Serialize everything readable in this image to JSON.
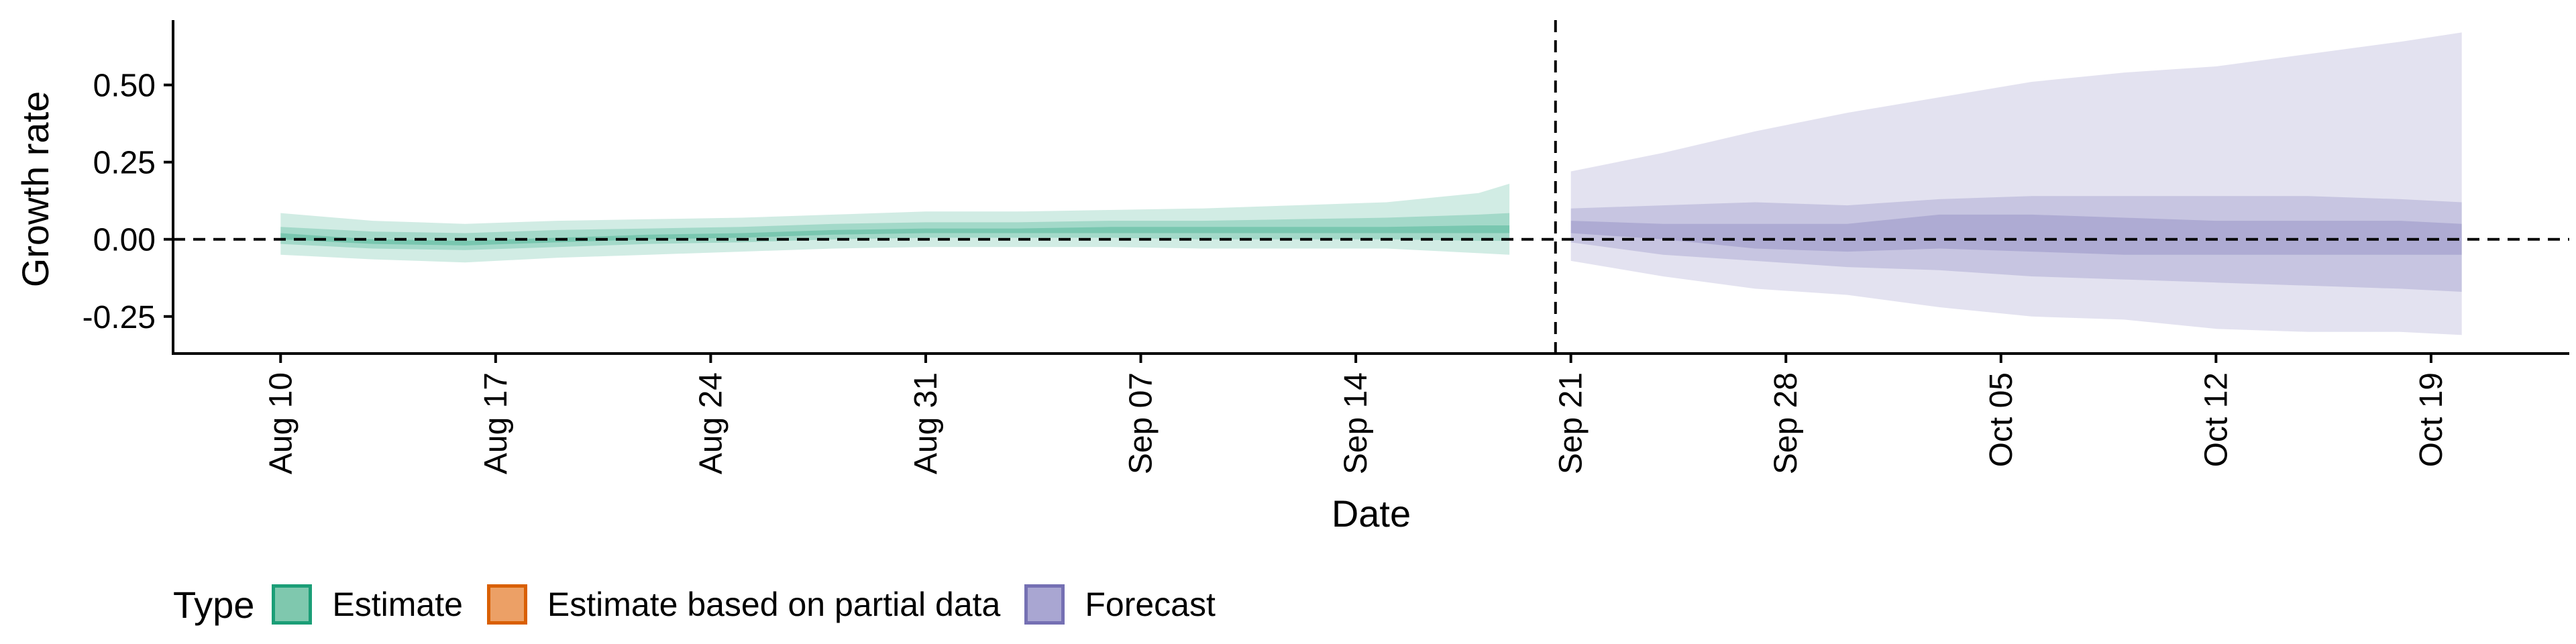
{
  "chart_data": {
    "type": "area",
    "title": "",
    "xlabel": "Date",
    "ylabel": "Growth rate",
    "x_ticks": [
      "2020-08-10",
      "2020-08-17",
      "2020-08-24",
      "2020-08-31",
      "2020-09-07",
      "2020-09-14",
      "2020-09-21",
      "2020-09-28",
      "2020-10-05",
      "2020-10-12",
      "2020-10-19"
    ],
    "x_tick_labels": [
      "Aug 10",
      "Aug 17",
      "Aug 24",
      "Aug 31",
      "Sep 07",
      "Sep 14",
      "Sep 21",
      "Sep 28",
      "Oct 05",
      "Oct 12",
      "Oct 19"
    ],
    "xlim": [
      "2020-08-06T12:00",
      "2020-10-23T12:00"
    ],
    "y_ticks": [
      -0.25,
      0,
      0.25,
      0.5
    ],
    "y_tick_labels": [
      "-0.25",
      "0.00",
      "0.25",
      "0.50"
    ],
    "ylim": [
      -0.37,
      0.71
    ],
    "grid": false,
    "reference_lines": {
      "horizontal_y": 0,
      "vertical_x": "2020-09-20T12:00"
    },
    "legend": {
      "title": "Type",
      "position": "bottom-left",
      "items": [
        {
          "label": "Estimate",
          "fill": "#7fc8ae",
          "stroke": "#1b9e77"
        },
        {
          "label": "Estimate based on partial data",
          "fill": "#eca066",
          "stroke": "#d95f02"
        },
        {
          "label": "Forecast",
          "fill": "#a9a6d2",
          "stroke": "#7570b3"
        }
      ]
    },
    "series": [
      {
        "name": "Estimate",
        "color": "#1b9e77",
        "x": [
          "2020-08-10",
          "2020-08-13",
          "2020-08-16",
          "2020-08-19",
          "2020-08-22",
          "2020-08-25",
          "2020-08-28",
          "2020-08-31",
          "2020-09-03",
          "2020-09-06",
          "2020-09-09",
          "2020-09-12",
          "2020-09-15",
          "2020-09-18",
          "2020-09-19"
        ],
        "lower90": [
          -0.05,
          -0.065,
          -0.075,
          -0.06,
          -0.05,
          -0.04,
          -0.03,
          -0.025,
          -0.025,
          -0.025,
          -0.03,
          -0.03,
          -0.03,
          -0.045,
          -0.05
        ],
        "lower50": [
          -0.015,
          -0.03,
          -0.035,
          -0.025,
          -0.015,
          -0.01,
          0.0,
          0.005,
          0.005,
          0.005,
          0.0,
          0.0,
          0.0,
          -0.005,
          -0.005
        ],
        "lower20": [
          0.0,
          -0.015,
          -0.02,
          -0.01,
          0.0,
          0.005,
          0.015,
          0.02,
          0.02,
          0.02,
          0.02,
          0.02,
          0.02,
          0.02,
          0.02
        ],
        "upper20": [
          0.02,
          0.0,
          -0.005,
          0.005,
          0.015,
          0.02,
          0.03,
          0.035,
          0.035,
          0.04,
          0.04,
          0.04,
          0.04,
          0.045,
          0.045
        ],
        "upper50": [
          0.04,
          0.025,
          0.02,
          0.03,
          0.035,
          0.04,
          0.05,
          0.055,
          0.055,
          0.06,
          0.06,
          0.065,
          0.07,
          0.08,
          0.085
        ],
        "upper90": [
          0.085,
          0.06,
          0.05,
          0.06,
          0.065,
          0.07,
          0.08,
          0.09,
          0.09,
          0.095,
          0.1,
          0.11,
          0.12,
          0.15,
          0.18
        ]
      },
      {
        "name": "Forecast",
        "color": "#7570b3",
        "x": [
          "2020-09-21",
          "2020-09-24",
          "2020-09-27",
          "2020-09-30",
          "2020-10-03",
          "2020-10-06",
          "2020-10-09",
          "2020-10-12",
          "2020-10-15",
          "2020-10-18",
          "2020-10-20"
        ],
        "lower90": [
          -0.07,
          -0.12,
          -0.16,
          -0.18,
          -0.22,
          -0.25,
          -0.26,
          -0.29,
          -0.3,
          -0.3,
          -0.31
        ],
        "lower50": [
          -0.01,
          -0.05,
          -0.07,
          -0.09,
          -0.1,
          -0.12,
          -0.13,
          -0.14,
          -0.15,
          -0.16,
          -0.17
        ],
        "lower20": [
          0.02,
          0.0,
          -0.03,
          -0.04,
          -0.03,
          -0.04,
          -0.05,
          -0.05,
          -0.05,
          -0.05,
          -0.05
        ],
        "upper20": [
          0.06,
          0.05,
          0.05,
          0.05,
          0.08,
          0.08,
          0.07,
          0.06,
          0.06,
          0.06,
          0.05
        ],
        "upper50": [
          0.1,
          0.11,
          0.12,
          0.11,
          0.13,
          0.14,
          0.14,
          0.14,
          0.14,
          0.13,
          0.12
        ],
        "upper90": [
          0.22,
          0.28,
          0.35,
          0.41,
          0.46,
          0.51,
          0.54,
          0.56,
          0.6,
          0.64,
          0.67
        ]
      }
    ]
  }
}
